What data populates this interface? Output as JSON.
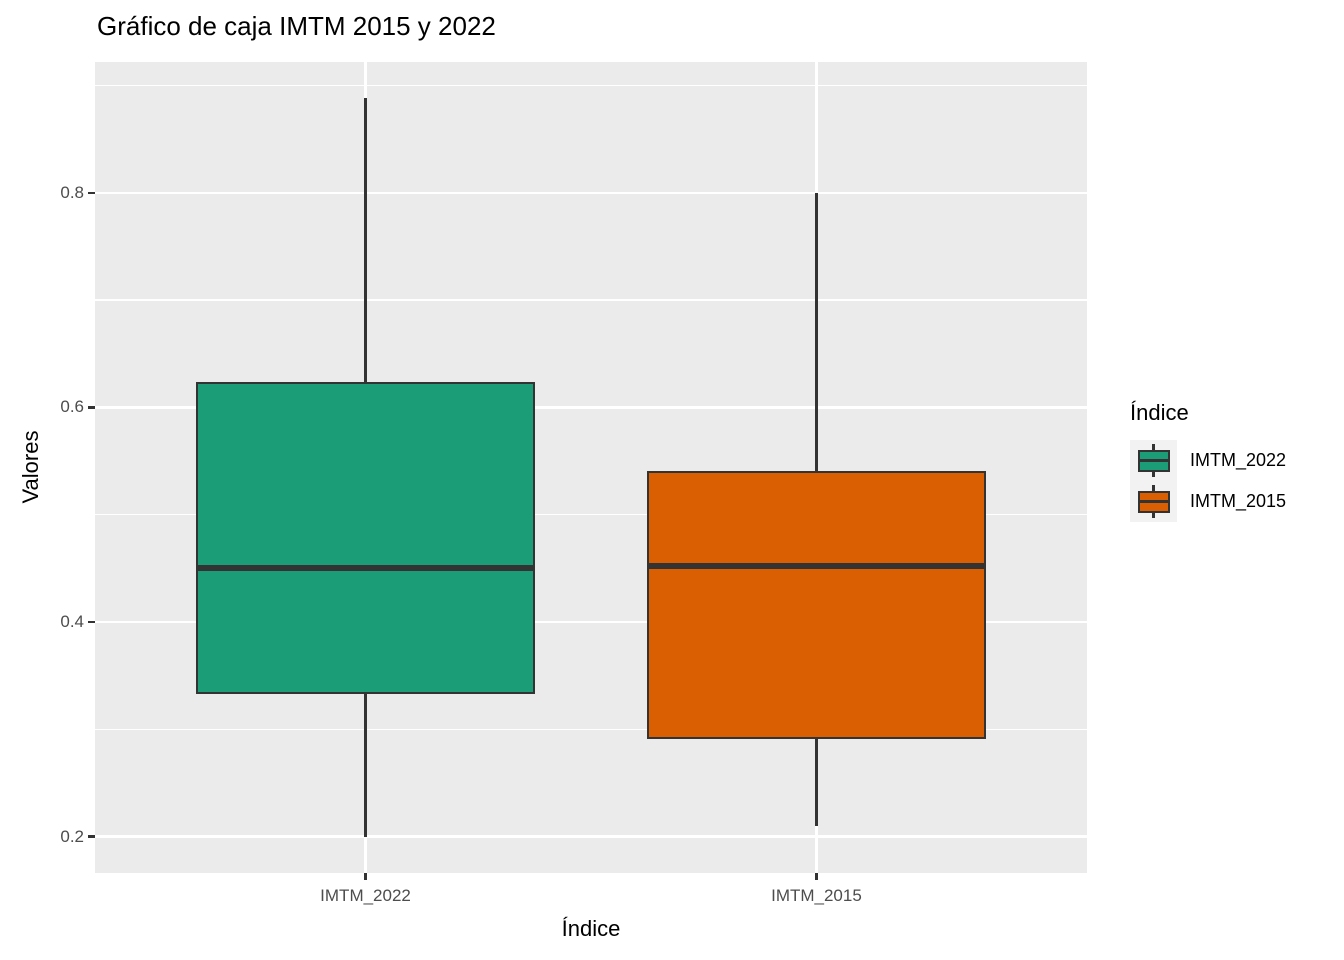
{
  "chart_data": {
    "type": "boxplot",
    "title": "Gráfico de caja IMTM 2015 y 2022",
    "xlabel": "Índice",
    "ylabel": "Valores",
    "categories": [
      "IMTM_2022",
      "IMTM_2015"
    ],
    "ylim": [
      0.166,
      0.922
    ],
    "y_major_ticks": [
      0.8,
      0.6,
      0.4,
      0.2
    ],
    "y_minor_gridlines": [
      0.9,
      0.7,
      0.5,
      0.3
    ],
    "grid": true,
    "legend": {
      "title": "Índice",
      "position": "right"
    },
    "series": [
      {
        "name": "IMTM_2022",
        "color": "#1b9e77",
        "whisker_min": 0.2,
        "q1": 0.333,
        "median": 0.45,
        "q3": 0.624,
        "whisker_max": 0.888,
        "outliers": []
      },
      {
        "name": "IMTM_2015",
        "color": "#d95f02",
        "whisker_min": 0.21,
        "q1": 0.291,
        "median": 0.452,
        "q3": 0.541,
        "whisker_max": 0.8,
        "outliers": []
      }
    ]
  },
  "colors": {
    "panel_bg": "#ebebeb",
    "gridline": "#ffffff",
    "box_border": "#333333",
    "axis_text": "#4d4d4d",
    "title_text": "#000000",
    "legend_key_bg": "#f2f2f2"
  }
}
